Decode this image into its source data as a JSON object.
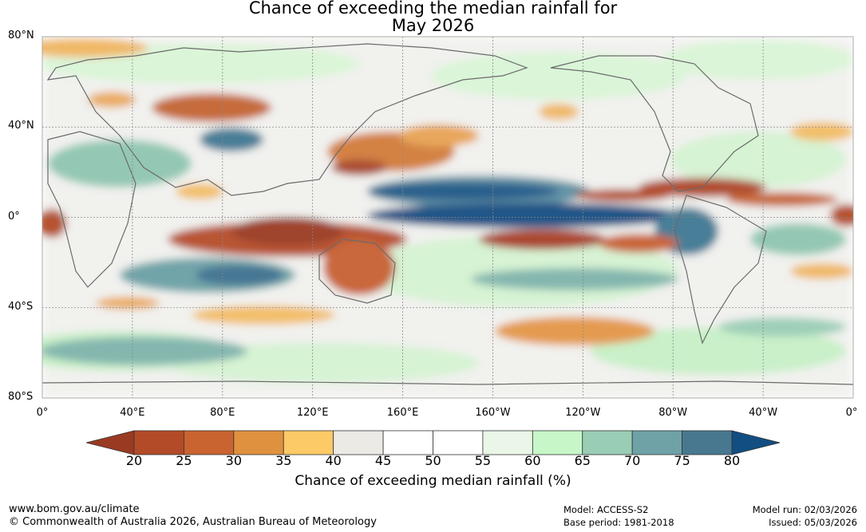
{
  "title": {
    "line1": "Chance of exceeding the median rainfall for",
    "line2": "May 2026"
  },
  "map": {
    "lat_labels": [
      "80°N",
      "40°N",
      "0°",
      "40°S",
      "80°S"
    ],
    "lon_labels": [
      "0°",
      "40°E",
      "80°E",
      "120°E",
      "160°E",
      "160°W",
      "120°W",
      "80°W",
      "40°W",
      "0°"
    ]
  },
  "colorbar": {
    "ticks": [
      "20",
      "25",
      "30",
      "35",
      "40",
      "45",
      "50",
      "55",
      "60",
      "65",
      "70",
      "75",
      "80"
    ],
    "title": "Chance of exceeding median rainfall (%)",
    "colors": [
      "#9a3a22",
      "#b34b28",
      "#c9632f",
      "#e0913f",
      "#fcca66",
      "#eceae4",
      "#ffffff",
      "#ffffff",
      "#eaf6e8",
      "#c7f7c8",
      "#9acdb5",
      "#6ea2a6",
      "#477890",
      "#124e82"
    ]
  },
  "footer": {
    "website": "www.bom.gov.au/climate",
    "copyright": "© Commonwealth of Australia 2026, Australian Bureau of Meteorology",
    "model": "Model: ACCESS-S2",
    "base_period": "Base period: 1981-2018",
    "model_run": "Model run: 02/03/2026",
    "issued": "Issued: 05/03/2026"
  }
}
